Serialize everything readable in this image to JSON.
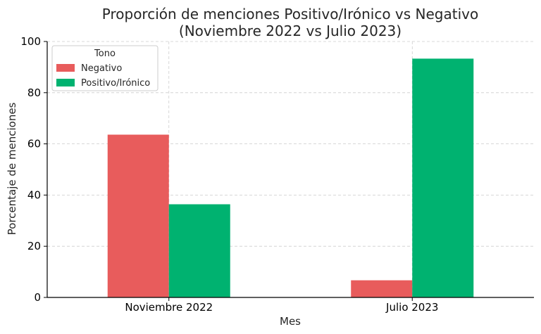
{
  "chart_data": {
    "type": "bar",
    "title_lines": [
      "Proporción de menciones Positivo/Irónico vs Negativo",
      "(Noviembre 2022 vs Julio 2023)"
    ],
    "xlabel": "Mes",
    "ylabel": "Porcentaje de menciones",
    "categories": [
      "Noviembre 2022",
      "Julio 2023"
    ],
    "ylim": [
      0,
      100
    ],
    "yticks": [
      0,
      20,
      40,
      60,
      80,
      100
    ],
    "grid": true,
    "legend": {
      "title": "Tono",
      "placement": "top-left"
    },
    "series": [
      {
        "name": "Negativo",
        "color": "#E85C5C",
        "values": [
          63.6,
          6.7
        ]
      },
      {
        "name": "Positivo/Irónico",
        "color": "#00B270",
        "values": [
          36.4,
          93.3
        ]
      }
    ]
  }
}
